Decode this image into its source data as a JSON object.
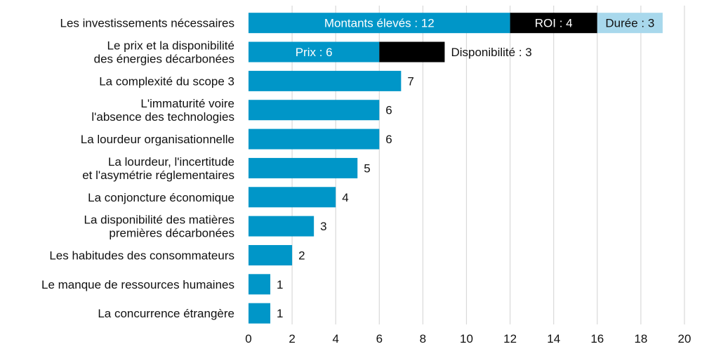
{
  "chart_data": {
    "type": "bar",
    "orientation": "horizontal",
    "stacked": true,
    "title": "",
    "xlabel": "",
    "ylabel": "",
    "xlim": [
      0,
      20
    ],
    "xticks": [
      0,
      2,
      4,
      6,
      8,
      10,
      12,
      14,
      16,
      18,
      20
    ],
    "grid": "vertical",
    "colors": {
      "main": "#0096C8",
      "black": "#000000",
      "light": "#A8D8EC",
      "grid": "#d9d9d9"
    },
    "categories": [
      [
        "Les investissements nécessaires"
      ],
      [
        "Le prix et la disponibilité",
        "des énergies décarbonées"
      ],
      [
        "La complexité du scope 3"
      ],
      [
        "L'immaturité voire",
        "l'absence des technologies"
      ],
      [
        "La lourdeur organisationnelle"
      ],
      [
        "La lourdeur, l'incertitude",
        "et l'asymétrie réglementaires"
      ],
      [
        "La conjoncture économique"
      ],
      [
        "La disponibilité des matières",
        "premières décarbonées"
      ],
      [
        "Les habitudes des consommateurs"
      ],
      [
        "Le manque de ressources humaines"
      ],
      [
        "La concurrence étrangère"
      ]
    ],
    "bars": [
      {
        "segments": [
          {
            "value": 12,
            "color": "#0096C8",
            "label": "Montants élevés : 12",
            "label_pos": "inside",
            "label_color": "#ffffff"
          },
          {
            "value": 4,
            "color": "#000000",
            "label": "ROI : 4",
            "label_pos": "inside",
            "label_color": "#ffffff"
          },
          {
            "value": 3,
            "color": "#A8D8EC",
            "label": "Durée : 3",
            "label_pos": "inside",
            "label_color": "#111111"
          }
        ]
      },
      {
        "segments": [
          {
            "value": 6,
            "color": "#0096C8",
            "label": "Prix : 6",
            "label_pos": "inside",
            "label_color": "#ffffff"
          },
          {
            "value": 3,
            "color": "#000000",
            "label": "Disponibilité : 3",
            "label_pos": "outside",
            "label_color": "#111111"
          }
        ]
      },
      {
        "segments": [
          {
            "value": 7,
            "color": "#0096C8",
            "label": "7",
            "label_pos": "outside",
            "label_color": "#111111"
          }
        ]
      },
      {
        "segments": [
          {
            "value": 6,
            "color": "#0096C8",
            "label": "6",
            "label_pos": "outside",
            "label_color": "#111111"
          }
        ]
      },
      {
        "segments": [
          {
            "value": 6,
            "color": "#0096C8",
            "label": "6",
            "label_pos": "outside",
            "label_color": "#111111"
          }
        ]
      },
      {
        "segments": [
          {
            "value": 5,
            "color": "#0096C8",
            "label": "5",
            "label_pos": "outside",
            "label_color": "#111111"
          }
        ]
      },
      {
        "segments": [
          {
            "value": 4,
            "color": "#0096C8",
            "label": "4",
            "label_pos": "outside",
            "label_color": "#111111"
          }
        ]
      },
      {
        "segments": [
          {
            "value": 3,
            "color": "#0096C8",
            "label": "3",
            "label_pos": "outside",
            "label_color": "#111111"
          }
        ]
      },
      {
        "segments": [
          {
            "value": 2,
            "color": "#0096C8",
            "label": "2",
            "label_pos": "outside",
            "label_color": "#111111"
          }
        ]
      },
      {
        "segments": [
          {
            "value": 1,
            "color": "#0096C8",
            "label": "1",
            "label_pos": "outside",
            "label_color": "#111111"
          }
        ]
      },
      {
        "segments": [
          {
            "value": 1,
            "color": "#0096C8",
            "label": "1",
            "label_pos": "outside",
            "label_color": "#111111"
          }
        ]
      }
    ]
  }
}
